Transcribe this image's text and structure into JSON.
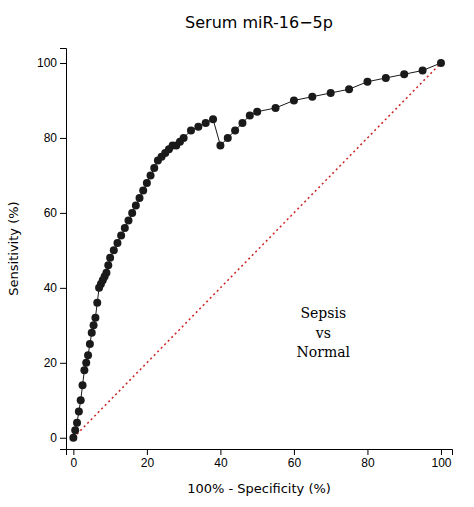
{
  "chart_data": {
    "type": "line",
    "title": "Serum miR-16−5p",
    "x_label": "100% - Specificity (%)",
    "y_label": "Sensitivity (%)",
    "xlim": [
      -2,
      103
    ],
    "ylim": [
      -3,
      104
    ],
    "xticks": [
      0,
      20,
      40,
      60,
      80,
      100
    ],
    "yticks": [
      0,
      20,
      40,
      60,
      80,
      100
    ],
    "grid": false,
    "series": [
      {
        "color": "#1a1a1a",
        "marker": "circle",
        "x": [
          0.0,
          0.5,
          1.0,
          1.5,
          2.0,
          2.5,
          3.0,
          3.5,
          4.0,
          4.5,
          5.0,
          5.5,
          6.0,
          6.5,
          7.0,
          7.5,
          8.0,
          8.5,
          9.0,
          9.5,
          10.0,
          11.0,
          12.0,
          13.0,
          14.0,
          15.0,
          16.0,
          17.0,
          18.0,
          19.0,
          20.0,
          21.0,
          22.0,
          23.0,
          24.0,
          25.0,
          26.0,
          27.0,
          28.0,
          29.0,
          30.0,
          32.0,
          34.0,
          36.0,
          38.0,
          40.0,
          42.0,
          44.0,
          46.0,
          48.0,
          50.0,
          55.0,
          60.0,
          65.0,
          70.0,
          75.0,
          80.0,
          85.0,
          90.0,
          95.0,
          100.0
        ],
        "values": [
          0.0,
          2.0,
          4.0,
          7.0,
          10.0,
          14.0,
          18.0,
          20.0,
          22.0,
          25.0,
          28.0,
          30.0,
          32.0,
          36.0,
          40.0,
          41.0,
          42.0,
          43.0,
          44.0,
          46.0,
          48.0,
          50.0,
          52.0,
          54.0,
          56.0,
          58.0,
          60.0,
          62.0,
          64.0,
          66.0,
          68.0,
          70.0,
          72.0,
          74.0,
          75.0,
          76.0,
          77.0,
          78.0,
          78.0,
          79.0,
          80.0,
          82.0,
          83.0,
          84.0,
          85.0,
          78.0,
          80.0,
          82.0,
          84.0,
          86.0,
          87.0,
          88.0,
          90.0,
          91.0,
          92.0,
          93.0,
          95.0,
          96.0,
          97.0,
          98.0,
          100.0
        ]
      },
      {
        "color": "#cc2222",
        "line_style": "dotted",
        "x": [
          0,
          100
        ],
        "values": [
          0,
          100
        ]
      }
    ],
    "annotations": [
      {
        "text": "Sepsis\nvs\nNormal",
        "x": 68,
        "y": 28
      }
    ]
  }
}
